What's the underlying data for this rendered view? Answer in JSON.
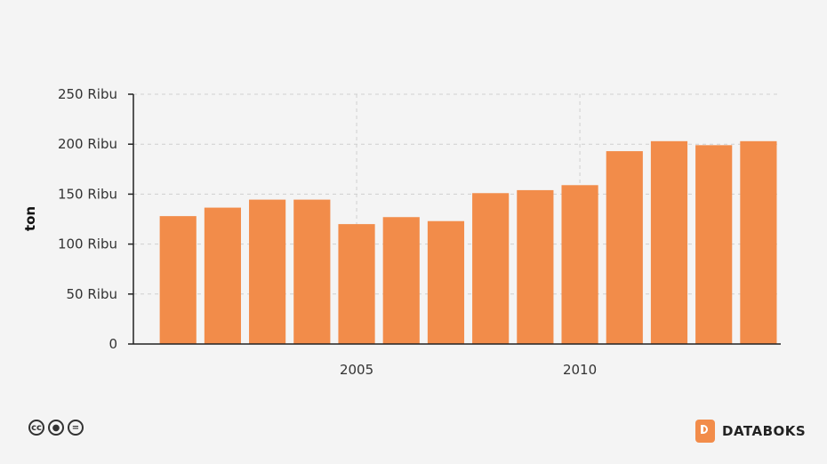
{
  "chart_data": {
    "type": "bar",
    "x": [
      2001,
      2002,
      2003,
      2004,
      2005,
      2006,
      2007,
      2008,
      2009,
      2010,
      2011,
      2012,
      2013,
      2014
    ],
    "values": [
      128000,
      136500,
      144500,
      144500,
      120000,
      127000,
      123000,
      151000,
      154000,
      159000,
      193000,
      203000,
      199000,
      203000
    ],
    "xlabel": "",
    "ylabel": "ton",
    "ylim": [
      0,
      250000
    ],
    "yticks": [
      {
        "value": 0,
        "label": "0"
      },
      {
        "value": 50000,
        "label": "50 Ribu"
      },
      {
        "value": 100000,
        "label": "100 Ribu"
      },
      {
        "value": 150000,
        "label": "150 Ribu"
      },
      {
        "value": 200000,
        "label": "200 Ribu"
      },
      {
        "value": 250000,
        "label": "250 Ribu"
      }
    ],
    "xticks": [
      {
        "value": 2005,
        "label": "2005"
      },
      {
        "value": 2010,
        "label": "2010"
      }
    ],
    "grid": true,
    "bar_color": "#f28c4a"
  },
  "footer": {
    "license_icons": [
      "cc-icon",
      "by-icon",
      "nd-icon"
    ],
    "brand": "DATABOKS"
  }
}
